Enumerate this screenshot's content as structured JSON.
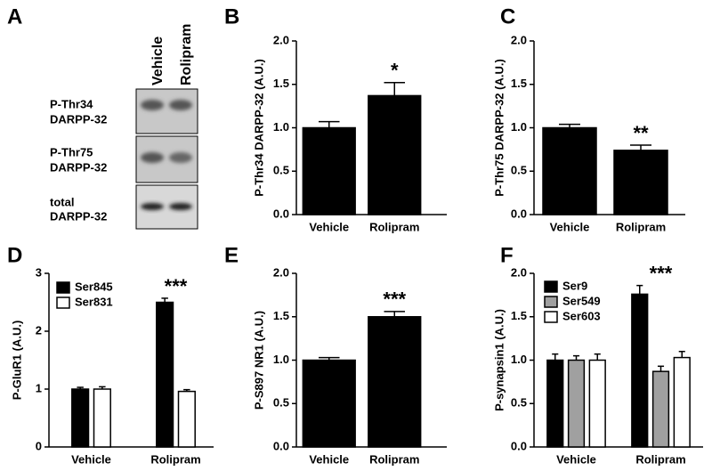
{
  "blot": {
    "panel": "A",
    "lanes": [
      "Vehicle",
      "Rolipram"
    ],
    "rows": [
      [
        "P-Thr34",
        "DARPP-32"
      ],
      [
        "P-Thr75",
        "DARPP-32"
      ],
      [
        "total",
        "DARPP-32"
      ]
    ]
  },
  "chart_data": [
    {
      "type": "bar",
      "panel": "B",
      "y_label": "P-Thr34 DARPP-32 (A.U.)",
      "categories": [
        "Vehicle",
        "Rolipram"
      ],
      "series": [
        {
          "color": "#000000",
          "values": [
            1.0,
            1.37
          ],
          "errors": [
            0.07,
            0.15
          ]
        }
      ],
      "annotation": "*",
      "ylim": [
        0,
        2
      ],
      "yticks": [
        {
          "value": 0,
          "label": "0.0"
        },
        {
          "value": 0.5,
          "label": "0.5"
        },
        {
          "value": 1,
          "label": "1.0"
        },
        {
          "value": 1.5,
          "label": "1.5"
        },
        {
          "value": 2,
          "label": "2.0"
        }
      ]
    },
    {
      "type": "bar",
      "panel": "C",
      "y_label": "P-Thr75 DARPP-32 (A.U.)",
      "categories": [
        "Vehicle",
        "Rolipram"
      ],
      "series": [
        {
          "color": "#000000",
          "values": [
            1.0,
            0.74
          ],
          "errors": [
            0.04,
            0.06
          ]
        }
      ],
      "annotation": "**",
      "ylim": [
        0,
        2
      ],
      "yticks": [
        {
          "value": 0,
          "label": "0.0"
        },
        {
          "value": 0.5,
          "label": "0.5"
        },
        {
          "value": 1,
          "label": "1.0"
        },
        {
          "value": 1.5,
          "label": "1.5"
        },
        {
          "value": 2,
          "label": "2.0"
        }
      ]
    },
    {
      "type": "bar",
      "panel": "D",
      "y_label": "P-GluR1 (A.U.)",
      "categories": [
        "Vehicle",
        "Rolipram"
      ],
      "series": [
        {
          "name": "Ser845",
          "color": "#000000",
          "values": [
            1.0,
            2.5
          ],
          "errors": [
            0.03,
            0.07
          ]
        },
        {
          "name": "Ser831",
          "color": "#ffffff",
          "values": [
            1.0,
            0.96
          ],
          "errors": [
            0.04,
            0.03
          ]
        }
      ],
      "annotation": "***",
      "ylim": [
        0,
        3
      ],
      "yticks": [
        0,
        1,
        2,
        3
      ]
    },
    {
      "type": "bar",
      "panel": "E",
      "y_label": "P-S897 NR1 (A.U.)",
      "categories": [
        "Vehicle",
        "Rolipram"
      ],
      "series": [
        {
          "color": "#000000",
          "values": [
            1.0,
            1.5
          ],
          "errors": [
            0.03,
            0.06
          ]
        }
      ],
      "annotation": "***",
      "ylim": [
        0,
        2
      ],
      "yticks": [
        {
          "value": 0,
          "label": "0.0"
        },
        {
          "value": 0.5,
          "label": "0.5"
        },
        {
          "value": 1,
          "label": "1.0"
        },
        {
          "value": 1.5,
          "label": "1.5"
        },
        {
          "value": 2,
          "label": "2.0"
        }
      ]
    },
    {
      "type": "bar",
      "panel": "F",
      "y_label": "P-synapsin1 (A.U.)",
      "categories": [
        "Vehicle",
        "Rolipram"
      ],
      "series": [
        {
          "name": "Ser9",
          "color": "#000000",
          "values": [
            1.0,
            1.76
          ],
          "errors": [
            0.07,
            0.1
          ]
        },
        {
          "name": "Ser549",
          "color": "#a0a0a0",
          "values": [
            1.0,
            0.87
          ],
          "errors": [
            0.05,
            0.06
          ]
        },
        {
          "name": "Ser603",
          "color": "#ffffff",
          "values": [
            1.0,
            1.03
          ],
          "errors": [
            0.07,
            0.07
          ]
        }
      ],
      "annotation": "***",
      "ylim": [
        0,
        2
      ],
      "yticks": [
        {
          "value": 0,
          "label": "0.0"
        },
        {
          "value": 0.5,
          "label": "0.5"
        },
        {
          "value": 1,
          "label": "1.0"
        },
        {
          "value": 1.5,
          "label": "1.5"
        },
        {
          "value": 2,
          "label": "2.0"
        }
      ]
    }
  ]
}
